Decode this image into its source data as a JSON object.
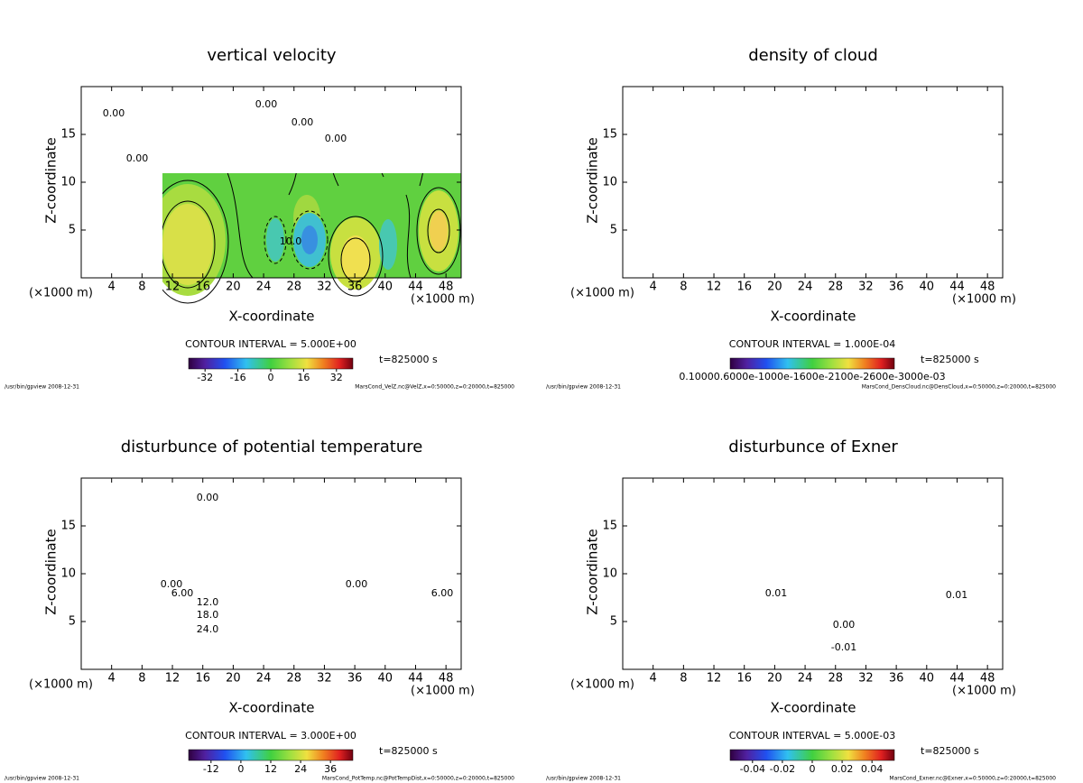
{
  "chart_data": [
    {
      "type": "contour",
      "title": "vertical velocity",
      "xlabel": "X-coordinate",
      "ylabel": "Z-coordinate",
      "x_unit": "(×1000 m)",
      "xlim": [
        0,
        50
      ],
      "ylim": [
        0,
        20
      ],
      "xticks": [
        4,
        8,
        12,
        16,
        20,
        24,
        28,
        32,
        36,
        40,
        44,
        48
      ],
      "yticks": [
        5,
        10,
        15
      ],
      "contour_interval": "CONTOUR INTERVAL = 5.000E+00",
      "time": "t=825000 s",
      "colorbar": {
        "lim": [
          -40,
          40
        ],
        "ticks": [
          -32,
          -16,
          0,
          16,
          32
        ]
      },
      "contour_labels": [
        "0.00",
        "0.00",
        "0.00",
        "0.00",
        "0.00",
        "10.0"
      ],
      "footer_left": "/usr/bin/gpview  2008-12-31",
      "footer_right": "MarsCond_VelZ.nc@VelZ,x=0:50000,z=0:20000,t=825000"
    },
    {
      "type": "contour",
      "title": "density of cloud",
      "xlabel": "X-coordinate",
      "ylabel": "Z-coordinate",
      "x_unit": "(×1000 m)",
      "xlim": [
        0,
        50
      ],
      "ylim": [
        0,
        20
      ],
      "xticks": [
        4,
        8,
        12,
        16,
        20,
        24,
        28,
        32,
        36,
        40,
        44,
        48
      ],
      "yticks": [
        5,
        10,
        15
      ],
      "contour_interval": "CONTOUR INTERVAL = 1.000E-04",
      "time": "t=825000 s",
      "colorbar_text": "0.10000.6000e-1000e-1600e-2100e-2600e-3000e-03",
      "footer_left": "/usr/bin/gpview  2008-12-31",
      "footer_right": "MarsCond_DensCloud.nc@DensCloud,x=0:50000,z=0:20000,t=825000"
    },
    {
      "type": "contour",
      "title": "disturbunce of potential temperature",
      "xlabel": "X-coordinate",
      "ylabel": "Z-coordinate",
      "x_unit": "(×1000 m)",
      "xlim": [
        0,
        50
      ],
      "ylim": [
        0,
        20
      ],
      "xticks": [
        4,
        8,
        12,
        16,
        20,
        24,
        28,
        32,
        36,
        40,
        44,
        48
      ],
      "yticks": [
        5,
        10,
        15
      ],
      "contour_interval": "CONTOUR INTERVAL = 3.000E+00",
      "time": "t=825000 s",
      "colorbar": {
        "lim": [
          -21,
          45
        ],
        "ticks": [
          -12,
          0,
          12,
          24,
          36
        ]
      },
      "contour_labels": [
        "0.00",
        "0.00",
        "0.00",
        "6.00",
        "6.00",
        "12.0",
        "18.0",
        "24.0"
      ],
      "footer_left": "/usr/bin/gpview  2008-12-31",
      "footer_right": "MarsCond_PotTemp.nc@PotTempDist,x=0:50000,z=0:20000,t=825000"
    },
    {
      "type": "contour",
      "title": "disturbunce of Exner",
      "xlabel": "X-coordinate",
      "ylabel": "Z-coordinate",
      "x_unit": "(×1000 m)",
      "xlim": [
        0,
        50
      ],
      "ylim": [
        0,
        20
      ],
      "xticks": [
        4,
        8,
        12,
        16,
        20,
        24,
        28,
        32,
        36,
        40,
        44,
        48
      ],
      "yticks": [
        5,
        10,
        15
      ],
      "contour_interval": "CONTOUR INTERVAL = 5.000E-03",
      "time": "t=825000 s",
      "colorbar": {
        "lim": [
          -0.055,
          0.055
        ],
        "ticks": [
          -0.04,
          -0.02,
          0,
          0.02,
          0.04
        ]
      },
      "contour_labels": [
        "0.01",
        "0.01",
        "0.00",
        "-0.01"
      ],
      "footer_left": "/usr/bin/gpview  2008-12-31",
      "footer_right": "MarsCond_Exner.nc@Exner,x=0:50000,z=0:20000,t=825000"
    }
  ]
}
